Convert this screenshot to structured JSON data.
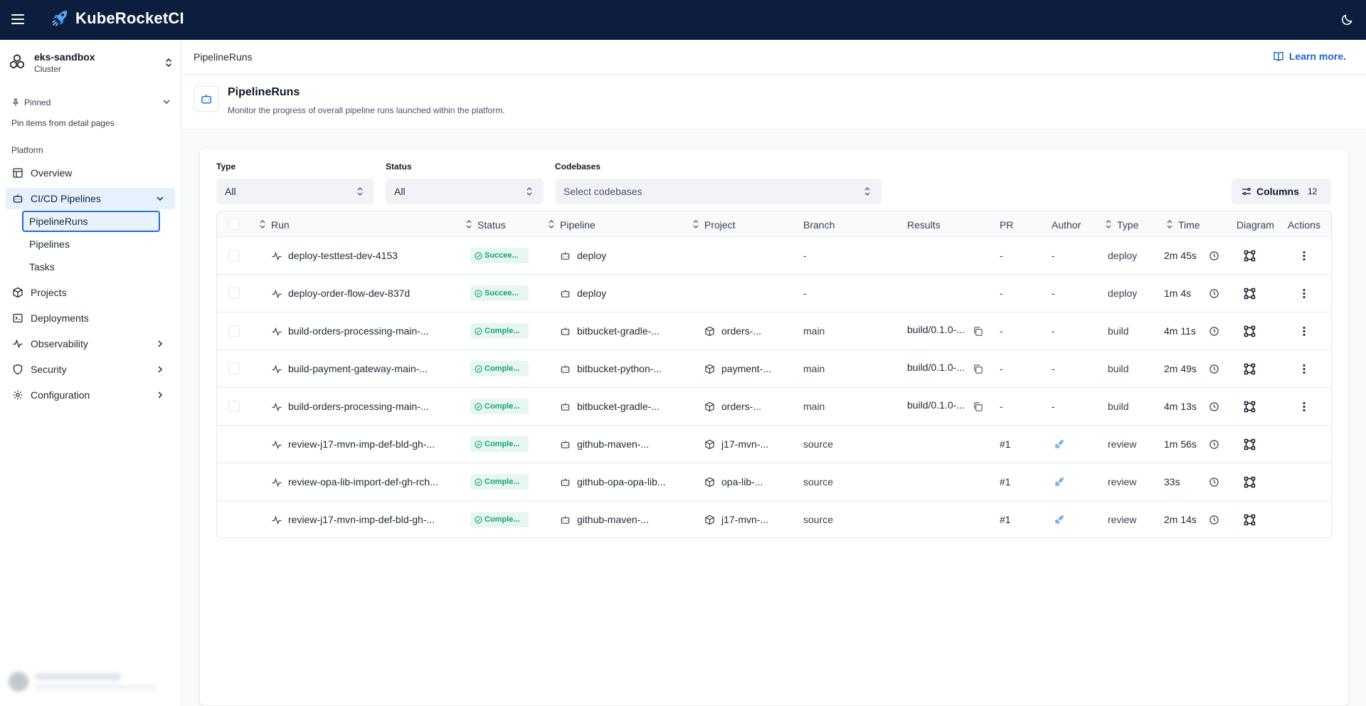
{
  "app": {
    "brand": "KubeRocketCI"
  },
  "cluster": {
    "name": "eks-sandbox",
    "type": "Cluster"
  },
  "sidebar": {
    "pinned_label": "Pinned",
    "pinned_hint": "Pin items from detail pages",
    "section_label": "Platform",
    "items": {
      "overview": "Overview",
      "cicd": "CI/CD Pipelines",
      "pipelineruns": "PipelineRuns",
      "pipelines": "Pipelines",
      "tasks": "Tasks",
      "projects": "Projects",
      "deployments": "Deployments",
      "observability": "Observability",
      "security": "Security",
      "configuration": "Configuration"
    }
  },
  "breadcrumb": "PipelineRuns",
  "learn_more": "Learn more.",
  "page": {
    "title": "PipelineRuns",
    "description": "Monitor the progress of overall pipeline runs launched within the platform."
  },
  "filters": {
    "type": {
      "label": "Type",
      "value": "All"
    },
    "status": {
      "label": "Status",
      "value": "All"
    },
    "codebases": {
      "label": "Codebases",
      "placeholder": "Select codebases"
    }
  },
  "columns_button": {
    "label": "Columns",
    "count": "12"
  },
  "table": {
    "headers": {
      "run": "Run",
      "status": "Status",
      "pipeline": "Pipeline",
      "project": "Project",
      "branch": "Branch",
      "results": "Results",
      "pr": "PR",
      "author": "Author",
      "type": "Type",
      "time": "Time",
      "diagram": "Diagram",
      "actions": "Actions"
    },
    "rows": [
      {
        "run": "deploy-testtest-dev-4153",
        "status": "Succee...",
        "pipeline": "deploy",
        "project": "",
        "branch": "-",
        "results": "",
        "pr": "-",
        "author": "-",
        "type": "deploy",
        "time": "2m 45s"
      },
      {
        "run": "deploy-order-flow-dev-837d",
        "status": "Succee...",
        "pipeline": "deploy",
        "project": "",
        "branch": "-",
        "results": "",
        "pr": "-",
        "author": "-",
        "type": "deploy",
        "time": "1m 4s"
      },
      {
        "run": "build-orders-processing-main-...",
        "status": "Comple...",
        "pipeline": "bitbucket-gradle-...",
        "project": "orders-...",
        "branch": "main",
        "results": "build/0.1.0-...",
        "pr": "-",
        "author": "-",
        "type": "build",
        "time": "4m 11s"
      },
      {
        "run": "build-payment-gateway-main-...",
        "status": "Comple...",
        "pipeline": "bitbucket-python-...",
        "project": "payment-...",
        "branch": "main",
        "results": "build/0.1.0-...",
        "pr": "-",
        "author": "-",
        "type": "build",
        "time": "2m 49s"
      },
      {
        "run": "build-orders-processing-main-...",
        "status": "Comple...",
        "pipeline": "bitbucket-gradle-...",
        "project": "orders-...",
        "branch": "main",
        "results": "build/0.1.0-...",
        "pr": "-",
        "author": "-",
        "type": "build",
        "time": "4m 13s"
      },
      {
        "run": "review-j17-mvn-imp-def-bld-gh-...",
        "status": "Comple...",
        "pipeline": "github-maven-...",
        "project": "j17-mvn-...",
        "branch": "source",
        "results": "",
        "pr": "#1",
        "author": "avatar",
        "type": "review",
        "time": "1m 56s"
      },
      {
        "run": "review-opa-lib-import-def-gh-rch...",
        "status": "Comple...",
        "pipeline": "github-opa-opa-lib...",
        "project": "opa-lib-...",
        "branch": "source",
        "results": "",
        "pr": "#1",
        "author": "avatar",
        "type": "review",
        "time": "33s"
      },
      {
        "run": "review-j17-mvn-imp-def-bld-gh-...",
        "status": "Comple...",
        "pipeline": "github-maven-...",
        "project": "j17-mvn-...",
        "branch": "source",
        "results": "",
        "pr": "#1",
        "author": "avatar",
        "type": "review",
        "time": "2m 14s"
      }
    ]
  },
  "colors": {
    "topbar": "#0c1d3d",
    "accent": "#1e6fd0",
    "success_text": "#16a36a",
    "success_bg": "#e7f7ef"
  }
}
